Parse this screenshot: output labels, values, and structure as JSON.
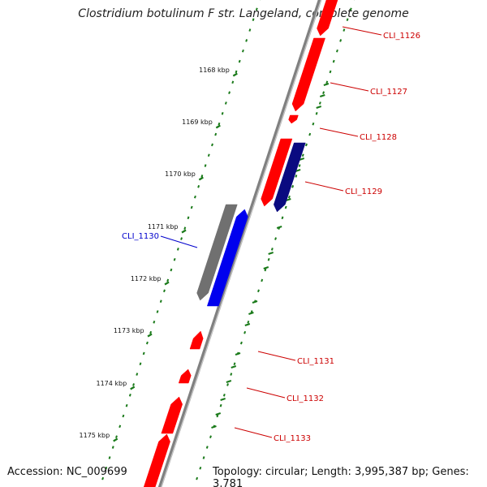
{
  "title": "Clostridium botulinum F str. Langeland, complete genome",
  "footer": {
    "accession": "Accession: NC_009699",
    "summary": "Topology: circular; Length: 3,995,387 bp; Genes: 3,781"
  },
  "colors": {
    "backbone": "#808080",
    "tick_dots": "#1a7a1a",
    "gene_forward": "#ff0000",
    "gene_reverse": "#0a0a80",
    "gene_blue": "#0000ee",
    "gene_gray": "#707070",
    "label_red": "#cc0000",
    "label_blue": "#0000cc"
  },
  "tick_labels": [
    "1168 kbp",
    "1169 kbp",
    "1170 kbp",
    "1171 kbp",
    "1172 kbp",
    "1173 kbp",
    "1174 kbp",
    "1175 kbp"
  ],
  "gene_labels": [
    "CLI_1126",
    "CLI_1127",
    "CLI_1128",
    "CLI_1129",
    "CLI_1130",
    "CLI_1131",
    "CLI_1132",
    "CLI_1133"
  ]
}
